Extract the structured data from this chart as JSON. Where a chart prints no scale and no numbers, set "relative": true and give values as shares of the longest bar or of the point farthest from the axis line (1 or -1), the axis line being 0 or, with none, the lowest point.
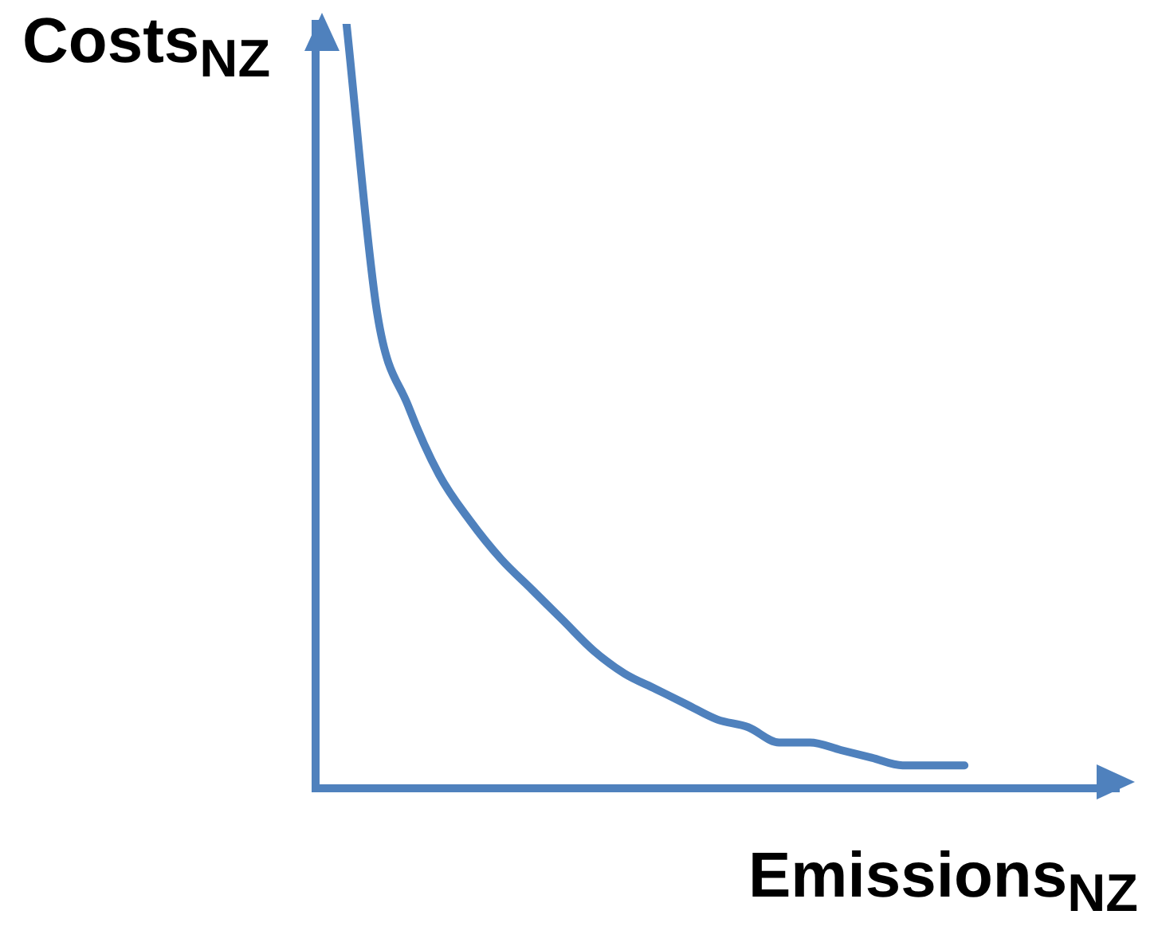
{
  "chart_data": {
    "type": "line",
    "xlabel": "Emissions$_{NZ}$",
    "ylabel": "Costs$_{NZ}$",
    "relative": true,
    "color": "#4f81bd",
    "marker": "none",
    "line_style": "solid",
    "grid": false,
    "legend": false,
    "categories": [
      null,
      null,
      null,
      null,
      null,
      null,
      null,
      null,
      null,
      null,
      null,
      null,
      null,
      null,
      null,
      null,
      null,
      null,
      null,
      null,
      null,
      null,
      null,
      null,
      null,
      null,
      null
    ],
    "series": [
      {
        "color": "#4f81bd",
        "values": [
          null,
          1,
          0.62,
          0.5,
          0.41,
          0.35,
          0.3,
          0.26,
          0.22,
          0.18,
          0.15,
          0.13,
          0.11,
          0.09,
          0.08,
          0.06,
          0.06,
          0.05,
          0.04,
          0.03,
          0.03,
          0.03,
          null,
          null,
          null,
          null,
          null
        ]
      }
    ]
  }
}
